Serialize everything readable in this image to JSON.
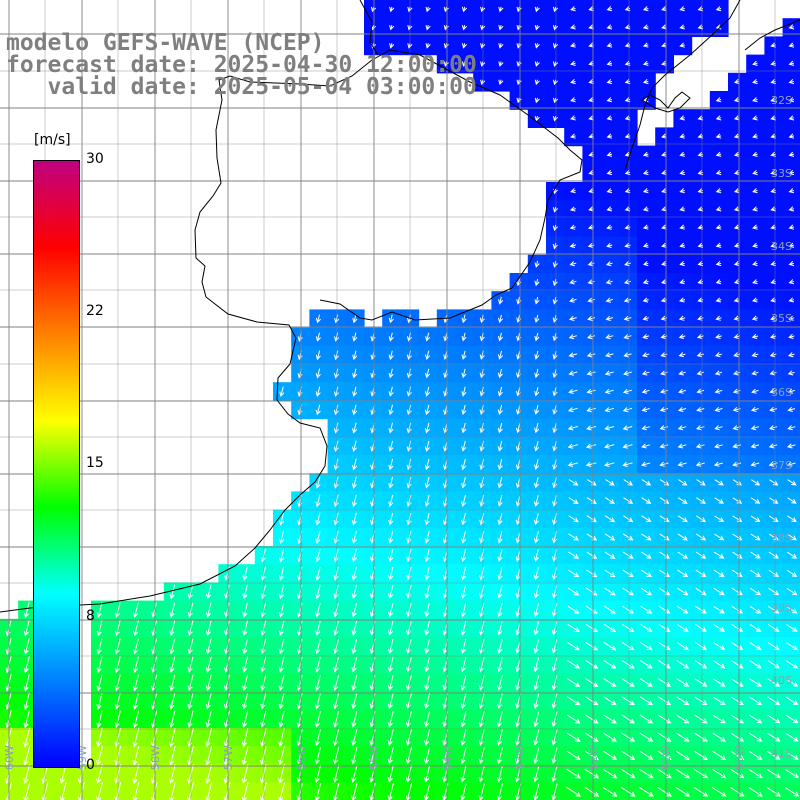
{
  "title": {
    "line1": "modelo GEFS-WAVE (NCEP)",
    "line2": "forecast date: 2025-04-30 12:00:00",
    "line3": "   valid date: 2025-05-04 03:00:00"
  },
  "colorbar": {
    "unit": "[m/s]",
    "ticks": [
      "30",
      "22",
      "15",
      "8",
      "0"
    ],
    "colors": [
      "#0000ff",
      "#0080ff",
      "#00ffff",
      "#00ff00",
      "#ffff00",
      "#ff8000",
      "#ff0000",
      "#c00080"
    ]
  },
  "lat_labels": [
    "32S",
    "33S",
    "34S",
    "35S",
    "36S",
    "37S",
    "38S",
    "39S",
    "40S",
    "41S"
  ],
  "lon_labels": [
    "60W",
    "59W",
    "58W",
    "57W",
    "56W",
    "55W",
    "54W",
    "53W",
    "52W",
    "51W",
    "50W"
  ],
  "colors": {
    "land": "#ffffff",
    "grid": "#808080",
    "coast": "#000000",
    "arrow": "#ffffff"
  }
}
